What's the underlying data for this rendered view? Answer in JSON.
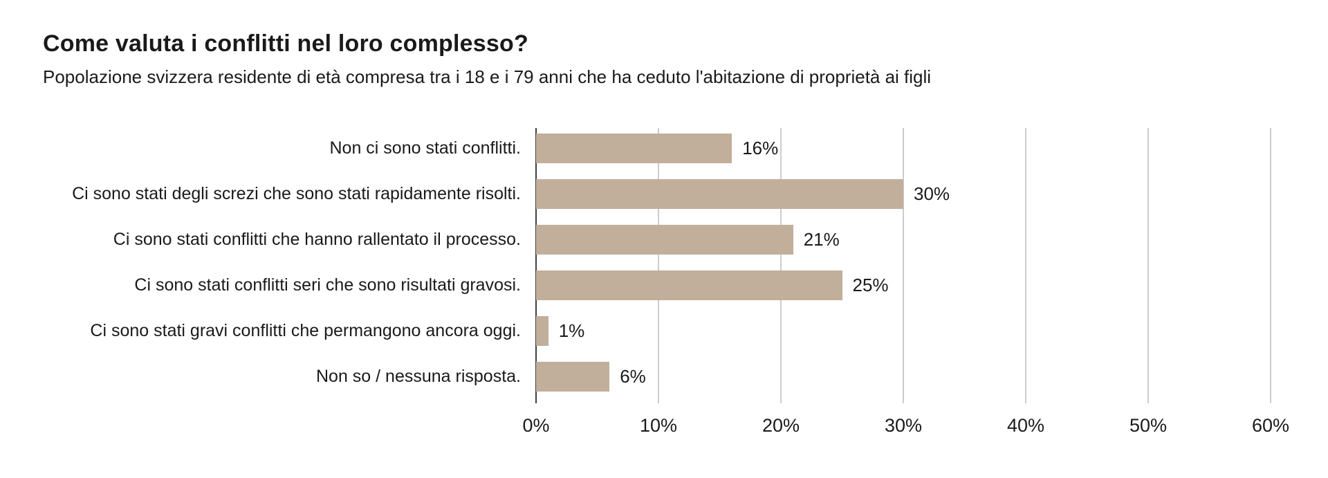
{
  "page": {
    "background": "#ffffff"
  },
  "chart_data": {
    "type": "bar",
    "orientation": "horizontal",
    "title": "Come valuta i conflitti nel loro complesso?",
    "subtitle": "Popolazione svizzera residente di età compresa tra i 18 e i 79 anni che ha ceduto l'abitazione di proprietà ai figli",
    "categories": [
      "Non ci sono stati conflitti.",
      "Ci sono stati degli screzi che sono stati rapidamente risolti.",
      "Ci sono stati conflitti che hanno rallentato il processo.",
      "Ci sono stati conflitti seri che sono risultati gravosi.",
      "Ci sono stati gravi conflitti che permangono ancora oggi.",
      "Non so / nessuna risposta."
    ],
    "values": [
      16,
      30,
      21,
      25,
      1,
      6
    ],
    "value_labels": [
      "16%",
      "30%",
      "21%",
      "25%",
      "1%",
      "6%"
    ],
    "xlim": [
      0,
      60
    ],
    "x_tick_values": [
      0,
      10,
      20,
      30,
      40,
      50,
      60
    ],
    "x_tick_labels": [
      "0%",
      "10%",
      "20%",
      "30%",
      "40%",
      "50%",
      "60%"
    ],
    "grid": true,
    "legend": "none",
    "xlabel": "",
    "ylabel": "",
    "bar_color": "#c1af9b",
    "gridline_color": "#cccccc",
    "axis_line_color": "#3f3f3f",
    "text_color": "#1a1a1a"
  }
}
